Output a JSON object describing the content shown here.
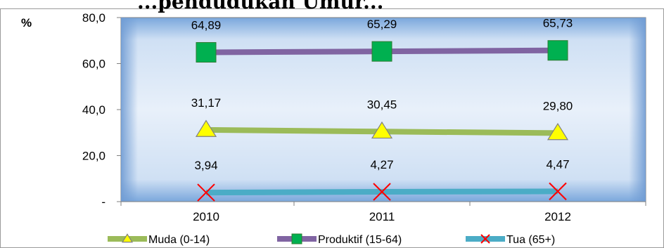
{
  "chart_data": {
    "type": "line",
    "title": "...pendudukan Umur...",
    "ylabel": "%",
    "categories": [
      "2010",
      "2011",
      "2012"
    ],
    "ylim": [
      0,
      80
    ],
    "y_ticks": [
      "-",
      "20,0",
      "40,0",
      "60,0",
      "80,0"
    ],
    "grid": false,
    "legend_position": "bottom",
    "series": [
      {
        "name": "Muda (0-14)",
        "values": [
          31.17,
          30.45,
          29.8
        ],
        "labels": [
          "31,17",
          "30,45",
          "29,80"
        ],
        "color": "#9BBB59",
        "marker": "triangle",
        "marker_color": "#FFFF00"
      },
      {
        "name": "Produktif (15-64)",
        "values": [
          64.89,
          65.29,
          65.73
        ],
        "labels": [
          "64,89",
          "65,29",
          "65,73"
        ],
        "color": "#8064A2",
        "marker": "square",
        "marker_color": "#00B050"
      },
      {
        "name": "Tua (65+)",
        "values": [
          3.94,
          4.27,
          4.47
        ],
        "labels": [
          "3,94",
          "4,27",
          "4,47"
        ],
        "color": "#4BACC6",
        "marker": "x",
        "marker_color": "#FF0000"
      }
    ]
  }
}
